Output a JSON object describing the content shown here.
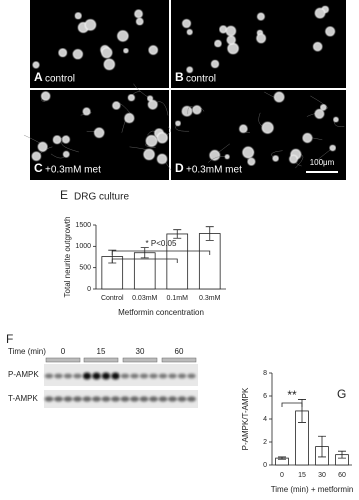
{
  "panels": [
    {
      "label": "A",
      "text": "control"
    },
    {
      "label": "B",
      "text": "control"
    },
    {
      "label": "C",
      "text": "+0.3mM met"
    },
    {
      "label": "D",
      "text": "+0.3mM met"
    }
  ],
  "scale_bar": "100μm",
  "chart_data": [
    {
      "type": "bar",
      "label": "E",
      "title": "DRG culture",
      "categories": [
        "Control",
        "0.03mM",
        "0.1mM",
        "0.3mM"
      ],
      "values": [
        760,
        850,
        1290,
        1300
      ],
      "errors": [
        150,
        120,
        100,
        160
      ],
      "ylim": [
        0,
        1500
      ],
      "yticks": [
        0,
        500,
        1000,
        1500
      ],
      "ylabel": "Total neurite outgrowth",
      "xlabel": "Metformin concentration",
      "annotation": "* P<0.05",
      "color": "#ffffff"
    },
    {
      "type": "bar",
      "label": "G",
      "categories": [
        "0",
        "15",
        "30",
        "60"
      ],
      "values": [
        0.6,
        4.7,
        1.6,
        0.9
      ],
      "errors": [
        0.1,
        1.0,
        0.9,
        0.3
      ],
      "ylim": [
        0,
        8
      ],
      "yticks": [
        0,
        2,
        4,
        6,
        8
      ],
      "ylabel": "P-AMPK/T-AMPK",
      "xlabel": "Time (min) + metformin",
      "annotation": "**",
      "color": "#ffffff"
    }
  ],
  "blot": {
    "label": "F",
    "time_label": "Time (min)",
    "times": [
      "0",
      "15",
      "30",
      "60"
    ],
    "rows": [
      "P-AMPK",
      "T-AMPK"
    ]
  }
}
